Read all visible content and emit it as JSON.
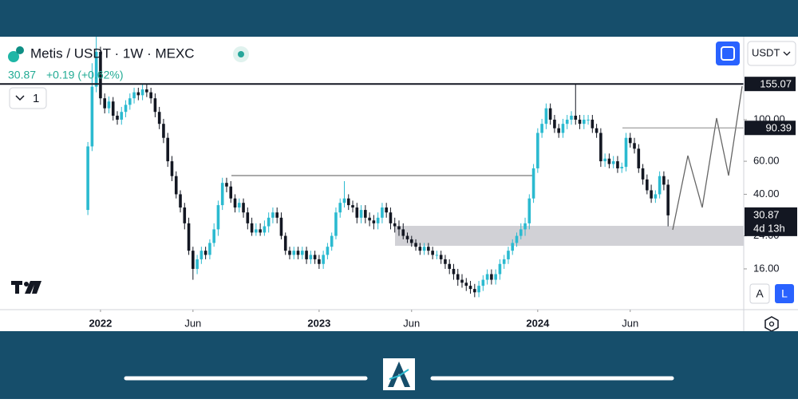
{
  "header": {
    "symbol": "Metis / USDT · 1W · MEXC",
    "price": "30.87",
    "change": "+0.19 (+0.62%)",
    "interval_count": "1",
    "currency": "USDT",
    "scale_buttons": [
      "A",
      "L"
    ]
  },
  "chart_data": {
    "type": "candlestick",
    "log_scale": true,
    "up_color": "#2bbad0",
    "down_color": "#131722",
    "x": [
      0,
      1,
      2,
      3,
      4,
      5,
      6,
      7,
      8,
      9,
      10,
      11,
      12,
      13,
      14,
      15,
      16,
      17,
      18,
      19,
      20,
      21,
      22,
      23,
      24,
      25,
      26,
      27,
      28,
      29,
      30,
      31,
      32,
      33,
      34,
      35,
      36,
      37,
      38,
      39,
      40,
      41,
      42,
      43,
      44,
      45,
      46,
      47,
      48,
      49,
      50,
      51,
      52,
      53,
      54,
      55,
      56,
      57,
      58,
      59,
      60,
      61,
      62,
      63,
      64,
      65,
      66,
      67,
      68,
      69,
      70,
      71,
      72,
      73,
      74,
      75,
      76,
      77,
      78,
      79,
      80,
      81,
      82,
      83,
      84,
      85,
      86,
      87,
      88,
      89,
      90,
      91,
      92,
      93,
      94,
      95,
      96,
      97,
      98,
      99,
      100,
      101,
      102,
      103,
      104,
      105,
      106,
      107,
      108,
      109,
      110,
      111,
      112,
      113,
      114,
      115,
      116,
      117,
      118,
      119,
      120,
      121,
      122,
      123,
      124,
      125,
      126,
      127,
      128,
      129,
      130,
      131,
      132,
      133,
      134,
      135,
      136,
      137,
      138
    ],
    "open": [
      33,
      72,
      150,
      230,
      130,
      115,
      125,
      105,
      100,
      110,
      120,
      130,
      140,
      135,
      145,
      140,
      130,
      110,
      95,
      80,
      60,
      50,
      40,
      34,
      28,
      20,
      16,
      18,
      20,
      19,
      22,
      26,
      35,
      46,
      44,
      38,
      34,
      36,
      32,
      28,
      25,
      26,
      25,
      27,
      30,
      32,
      30,
      24,
      20,
      19,
      20,
      19,
      20,
      18,
      19,
      18,
      17,
      19,
      21,
      24,
      32,
      36,
      38,
      35,
      34,
      30,
      33,
      30,
      29,
      28,
      30,
      34,
      32,
      28,
      27,
      26,
      24,
      23,
      22,
      21,
      20,
      21,
      20,
      19,
      19,
      18,
      17,
      16,
      15,
      14,
      13.5,
      13,
      12.5,
      12,
      13,
      14,
      15,
      14,
      15,
      17,
      18,
      20,
      22,
      24,
      26,
      28,
      38,
      55,
      85,
      95,
      115,
      100,
      90,
      85,
      95,
      100,
      105,
      100,
      95,
      100,
      100,
      90,
      85,
      60,
      62,
      58,
      60,
      55,
      56,
      80,
      75,
      70,
      55,
      48,
      42,
      38,
      40,
      50,
      45
    ],
    "high": [
      76,
      200,
      300,
      245,
      138,
      133,
      132,
      111,
      117,
      127,
      138,
      148,
      148,
      154,
      154,
      148,
      138,
      117,
      101,
      85,
      64,
      53,
      42,
      36,
      30,
      21,
      19,
      21,
      21,
      23,
      28,
      37,
      49,
      49,
      47,
      40,
      38,
      38,
      34,
      30,
      28,
      28,
      29,
      32,
      34,
      34,
      32,
      25,
      21,
      21,
      21,
      21,
      21,
      20,
      20,
      19,
      20,
      22,
      25,
      34,
      38,
      47,
      40,
      37,
      36,
      35,
      35,
      32,
      31,
      32,
      36,
      36,
      34,
      30,
      29,
      28,
      25,
      24,
      23,
      22,
      22,
      22,
      21,
      20,
      20,
      19,
      18,
      17,
      16,
      15,
      14.3,
      13.8,
      13.3,
      13.8,
      14.8,
      15.9,
      15.9,
      15.9,
      18,
      19,
      21,
      23,
      25,
      28,
      30,
      40,
      58,
      90,
      101,
      122,
      122,
      106,
      95,
      101,
      106,
      111,
      155,
      106,
      106,
      106,
      106,
      95,
      90,
      66,
      66,
      64,
      64,
      59,
      85,
      85,
      80,
      74,
      58,
      51,
      45,
      42,
      53,
      53,
      48
    ],
    "low": [
      31,
      68,
      140,
      120,
      108,
      108,
      99,
      94,
      94,
      103,
      113,
      122,
      127,
      127,
      132,
      122,
      103,
      89,
      75,
      56,
      47,
      38,
      32,
      26,
      19,
      14,
      15,
      17,
      18,
      18,
      21,
      24,
      33,
      41,
      36,
      32,
      32,
      30,
      26,
      24,
      24,
      24,
      24,
      25,
      28,
      28,
      23,
      19,
      18,
      18,
      18,
      18,
      17,
      17,
      17,
      16,
      16,
      18,
      20,
      23,
      30,
      34,
      33,
      32,
      28,
      28,
      28,
      27,
      26,
      26,
      28,
      30,
      26,
      25,
      24,
      23,
      22,
      21,
      20,
      19,
      19,
      19,
      18,
      18,
      17,
      16,
      15,
      14,
      13,
      12.7,
      12.2,
      11.8,
      11.3,
      11.3,
      12.2,
      13.2,
      13.2,
      13.2,
      14,
      16,
      17,
      19,
      21,
      23,
      24,
      26,
      36,
      52,
      80,
      89,
      94,
      85,
      80,
      80,
      89,
      94,
      94,
      89,
      89,
      94,
      85,
      80,
      56,
      56,
      55,
      55,
      52,
      52,
      53,
      71,
      66,
      52,
      45,
      40,
      36,
      36,
      38,
      42,
      27
    ],
    "close": [
      72,
      150,
      230,
      130,
      115,
      125,
      105,
      100,
      110,
      120,
      130,
      140,
      135,
      145,
      140,
      130,
      110,
      95,
      80,
      60,
      50,
      40,
      34,
      28,
      20,
      16,
      18,
      20,
      19,
      22,
      26,
      35,
      46,
      44,
      38,
      34,
      36,
      32,
      28,
      25,
      26,
      25,
      27,
      30,
      32,
      30,
      24,
      20,
      19,
      20,
      19,
      20,
      18,
      19,
      18,
      17,
      19,
      21,
      24,
      32,
      36,
      38,
      35,
      34,
      30,
      33,
      30,
      29,
      28,
      30,
      34,
      32,
      28,
      27,
      26,
      24,
      23,
      22,
      21,
      20,
      21,
      20,
      19,
      19,
      18,
      17,
      16,
      15,
      14,
      13.5,
      13,
      12.5,
      12,
      13,
      14,
      15,
      14,
      15,
      17,
      18,
      20,
      22,
      24,
      26,
      28,
      38,
      55,
      85,
      95,
      115,
      100,
      90,
      85,
      95,
      100,
      105,
      100,
      95,
      100,
      100,
      90,
      85,
      60,
      62,
      58,
      60,
      55,
      56,
      80,
      75,
      70,
      55,
      48,
      42,
      38,
      40,
      50,
      45,
      30.87
    ],
    "xlim": [
      -20.9,
      156
    ],
    "xticks": [
      {
        "value": 3,
        "label": "2022"
      },
      {
        "value": 25,
        "label": "Jun"
      },
      {
        "value": 55,
        "label": "2023"
      },
      {
        "value": 77,
        "label": "Jun"
      },
      {
        "value": 107,
        "label": "2024"
      },
      {
        "value": 129,
        "label": "Jun"
      }
    ],
    "ylim": [
      9.7,
      277
    ],
    "yticks": [
      {
        "value": 16,
        "label": "16.00"
      },
      {
        "value": 24,
        "label": "24.00"
      },
      {
        "value": 40,
        "label": "40.00"
      },
      {
        "value": 60,
        "label": "60.00"
      },
      {
        "value": 100,
        "label": "100.00"
      }
    ],
    "price_lines": [
      155.07,
      90.39
    ],
    "last_price": 30.87,
    "countdown": "4d 13h"
  }
}
